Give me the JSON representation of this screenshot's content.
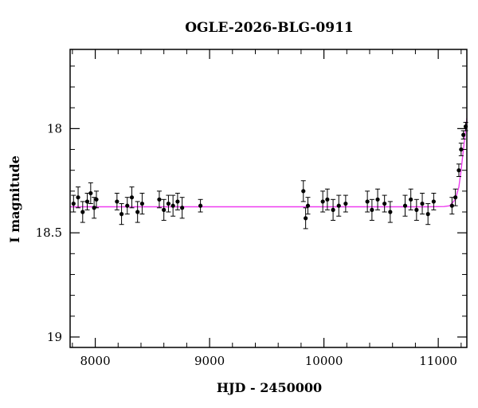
{
  "chart_data": {
    "type": "scatter",
    "title": "OGLE-2026-BLG-0911",
    "xlabel": "HJD - 2450000",
    "ylabel": "I magnitude",
    "xlim": [
      7780,
      11250
    ],
    "ylim": [
      19.05,
      17.62
    ],
    "y_inverted": true,
    "grid": false,
    "legend": "none",
    "x_ticks": [
      8000,
      9000,
      10000,
      11000
    ],
    "x_tick_labels": [
      "8000",
      "9000",
      "10000",
      "11000"
    ],
    "y_ticks": [
      18,
      18.5,
      19
    ],
    "y_tick_labels": [
      "18",
      "18.5",
      "19"
    ],
    "x_minor_step": 200,
    "y_minor_step": 0.1,
    "colors": {
      "points": "#000000",
      "model": "#ee3cf0"
    },
    "series": [
      {
        "type": "errorbar-scatter",
        "x": [
          7810,
          7850,
          7890,
          7930,
          7960,
          7990,
          8010,
          8190,
          8230,
          8280,
          8320,
          8370,
          8410,
          8560,
          8600,
          8640,
          8680,
          8720,
          8760,
          8920,
          9820,
          9840,
          9860,
          9990,
          10030,
          10080,
          10130,
          10190,
          10380,
          10420,
          10470,
          10530,
          10580,
          10710,
          10760,
          10810,
          10860,
          10910,
          10960,
          11120,
          11150,
          11180,
          11200,
          11220,
          11240
        ],
        "y": [
          18.36,
          18.33,
          18.4,
          18.35,
          18.31,
          18.38,
          18.34,
          18.35,
          18.41,
          18.37,
          18.33,
          18.4,
          18.36,
          18.34,
          18.39,
          18.36,
          18.37,
          18.35,
          18.38,
          18.37,
          18.3,
          18.43,
          18.37,
          18.35,
          18.34,
          18.39,
          18.37,
          18.36,
          18.35,
          18.39,
          18.34,
          18.36,
          18.4,
          18.37,
          18.34,
          18.39,
          18.36,
          18.41,
          18.35,
          18.37,
          18.33,
          18.2,
          18.1,
          18.03,
          17.99
        ],
        "err": [
          0.04,
          0.05,
          0.05,
          0.04,
          0.05,
          0.05,
          0.04,
          0.04,
          0.05,
          0.04,
          0.05,
          0.05,
          0.05,
          0.04,
          0.05,
          0.04,
          0.05,
          0.04,
          0.05,
          0.03,
          0.05,
          0.05,
          0.04,
          0.05,
          0.05,
          0.05,
          0.05,
          0.04,
          0.05,
          0.05,
          0.05,
          0.04,
          0.05,
          0.05,
          0.05,
          0.05,
          0.05,
          0.05,
          0.04,
          0.04,
          0.04,
          0.03,
          0.03,
          0.02,
          0.02
        ]
      },
      {
        "type": "line",
        "x": [
          7780,
          10900,
          11050,
          11100,
          11150,
          11180,
          11200,
          11220,
          11240,
          11250
        ],
        "y": [
          18.375,
          18.375,
          18.374,
          18.37,
          18.34,
          18.28,
          18.2,
          18.1,
          18.0,
          17.95
        ]
      }
    ]
  }
}
